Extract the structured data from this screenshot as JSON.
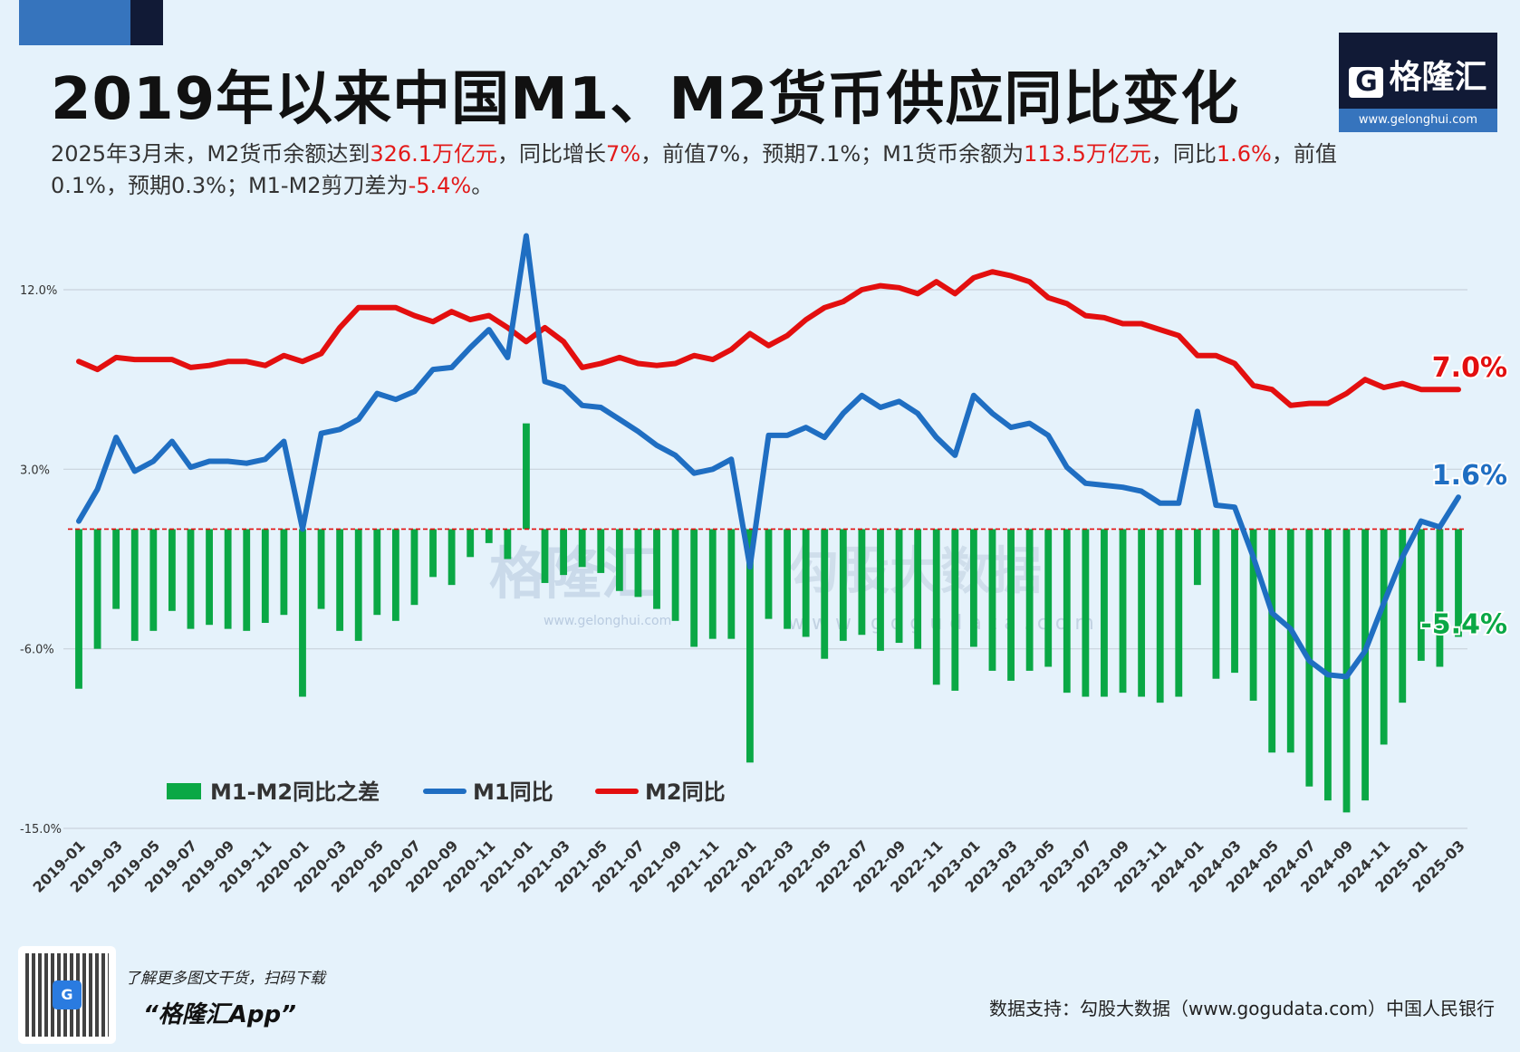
{
  "title": "2019年以来中国M1、M2货币供应同比变化",
  "subtitle": [
    {
      "text": "2025年3月末，M2货币余额达到",
      "hl": false
    },
    {
      "text": "326.1万亿元",
      "hl": true
    },
    {
      "text": "，同比增长",
      "hl": false
    },
    {
      "text": "7%",
      "hl": true
    },
    {
      "text": "，前值7%，预期7.1%；M1货币余额为",
      "hl": false
    },
    {
      "text": "113.5万亿元",
      "hl": true
    },
    {
      "text": "，同比",
      "hl": false
    },
    {
      "text": "1.6%",
      "hl": true
    },
    {
      "text": "，前值0.1%，预期0.3%；M1-M2剪刀差为",
      "hl": false
    },
    {
      "text": "-5.4%",
      "hl": true
    },
    {
      "text": "。",
      "hl": false
    }
  ],
  "logo": {
    "brand": "格隆汇",
    "url": "www.gelonghui.com"
  },
  "watermarks": {
    "left": "格隆汇",
    "left_url": "www.gelonghui.com",
    "right": "勾股大数据",
    "right_url": "www.gogudata.com"
  },
  "footer": {
    "promo_line": "了解更多图文干货，扫码下载",
    "app_name": "“格隆汇App”",
    "source": "数据支持：勾股大数据（www.gogudata.com）中国人民银行"
  },
  "colors": {
    "m1": "#1f6ec2",
    "m2": "#e30f0f",
    "diff": "#0aa845",
    "zero_line": "#e30f0f",
    "grid": "#c9d3dc"
  },
  "chart_data": {
    "type": "bar+line",
    "ylim": [
      -15,
      15
    ],
    "yticks": [
      "12.0%",
      "3.0%",
      "-6.0%",
      "-15.0%"
    ],
    "ytick_values": [
      12,
      3,
      -6,
      -15
    ],
    "grid": true,
    "legend_placement": "bottom-left",
    "x": [
      "2019-01",
      "2019-02",
      "2019-03",
      "2019-04",
      "2019-05",
      "2019-06",
      "2019-07",
      "2019-08",
      "2019-09",
      "2019-10",
      "2019-11",
      "2019-12",
      "2020-01",
      "2020-02",
      "2020-03",
      "2020-04",
      "2020-05",
      "2020-06",
      "2020-07",
      "2020-08",
      "2020-09",
      "2020-10",
      "2020-11",
      "2020-12",
      "2021-01",
      "2021-02",
      "2021-03",
      "2021-04",
      "2021-05",
      "2021-06",
      "2021-07",
      "2021-08",
      "2021-09",
      "2021-10",
      "2021-11",
      "2021-12",
      "2022-01",
      "2022-02",
      "2022-03",
      "2022-04",
      "2022-05",
      "2022-06",
      "2022-07",
      "2022-08",
      "2022-09",
      "2022-10",
      "2022-11",
      "2022-12",
      "2023-01",
      "2023-02",
      "2023-03",
      "2023-04",
      "2023-05",
      "2023-06",
      "2023-07",
      "2023-08",
      "2023-09",
      "2023-10",
      "2023-11",
      "2023-12",
      "2024-01",
      "2024-02",
      "2024-03",
      "2024-04",
      "2024-05",
      "2024-06",
      "2024-07",
      "2024-08",
      "2024-09",
      "2024-10",
      "2024-11",
      "2024-12",
      "2025-01",
      "2025-02",
      "2025-03"
    ],
    "series": [
      {
        "name": "M1-M2同比之差",
        "kind": "bar",
        "values": [
          -8.0,
          -6.0,
          -4.0,
          -5.6,
          -5.1,
          -4.1,
          -5.0,
          -4.8,
          -5.0,
          -5.1,
          -4.7,
          -4.3,
          -8.4,
          -4.0,
          -5.1,
          -5.6,
          -4.3,
          -4.6,
          -3.8,
          -2.4,
          -2.8,
          -1.4,
          -0.7,
          -1.5,
          5.3,
          -2.7,
          -2.3,
          -1.9,
          -2.2,
          -3.1,
          -3.4,
          -4.0,
          -4.6,
          -5.9,
          -5.5,
          -5.5,
          -11.7,
          -4.5,
          -5.0,
          -5.4,
          -6.5,
          -5.6,
          -5.3,
          -6.1,
          -5.7,
          -6.0,
          -7.8,
          -8.1,
          -5.9,
          -7.1,
          -7.6,
          -7.1,
          -6.9,
          -8.2,
          -8.4,
          -8.4,
          -8.2,
          -8.4,
          -8.7,
          -8.4,
          -2.8,
          -7.5,
          -7.2,
          -8.6,
          -11.2,
          -11.2,
          -12.9,
          -13.6,
          -14.2,
          -13.6,
          -10.8,
          -8.7,
          -6.6,
          -6.9,
          -5.4
        ]
      },
      {
        "name": "M1同比",
        "kind": "line",
        "values": [
          0.4,
          2.0,
          4.6,
          2.9,
          3.4,
          4.4,
          3.1,
          3.4,
          3.4,
          3.3,
          3.5,
          4.4,
          0.0,
          4.8,
          5.0,
          5.5,
          6.8,
          6.5,
          6.9,
          8.0,
          8.1,
          9.1,
          10.0,
          8.6,
          14.7,
          7.4,
          7.1,
          6.2,
          6.1,
          5.5,
          4.9,
          4.2,
          3.7,
          2.8,
          3.0,
          3.5,
          -1.9,
          4.7,
          4.7,
          5.1,
          4.6,
          5.8,
          6.7,
          6.1,
          6.4,
          5.8,
          4.6,
          3.7,
          6.7,
          5.8,
          5.1,
          5.3,
          4.7,
          3.1,
          2.3,
          2.2,
          2.1,
          1.9,
          1.3,
          1.3,
          5.9,
          1.2,
          1.1,
          -1.4,
          -4.2,
          -5.0,
          -6.6,
          -7.3,
          -7.4,
          -6.1,
          -3.7,
          -1.4,
          0.4,
          0.1,
          1.6
        ]
      },
      {
        "name": "M2同比",
        "kind": "line",
        "values": [
          8.4,
          8.0,
          8.6,
          8.5,
          8.5,
          8.5,
          8.1,
          8.2,
          8.4,
          8.4,
          8.2,
          8.7,
          8.4,
          8.8,
          10.1,
          11.1,
          11.1,
          11.1,
          10.7,
          10.4,
          10.9,
          10.5,
          10.7,
          10.1,
          9.4,
          10.1,
          9.4,
          8.1,
          8.3,
          8.6,
          8.3,
          8.2,
          8.3,
          8.7,
          8.5,
          9.0,
          9.8,
          9.2,
          9.7,
          10.5,
          11.1,
          11.4,
          12.0,
          12.2,
          12.1,
          11.8,
          12.4,
          11.8,
          12.6,
          12.9,
          12.7,
          12.4,
          11.6,
          11.3,
          10.7,
          10.6,
          10.3,
          10.3,
          10.0,
          9.7,
          8.7,
          8.7,
          8.3,
          7.2,
          7.0,
          6.2,
          6.3,
          6.3,
          6.8,
          7.5,
          7.1,
          7.3,
          7.0,
          7.0,
          7.0
        ]
      }
    ],
    "end_labels": {
      "m2": "7.0%",
      "m1": "1.6%",
      "diff": "-5.4%"
    }
  }
}
